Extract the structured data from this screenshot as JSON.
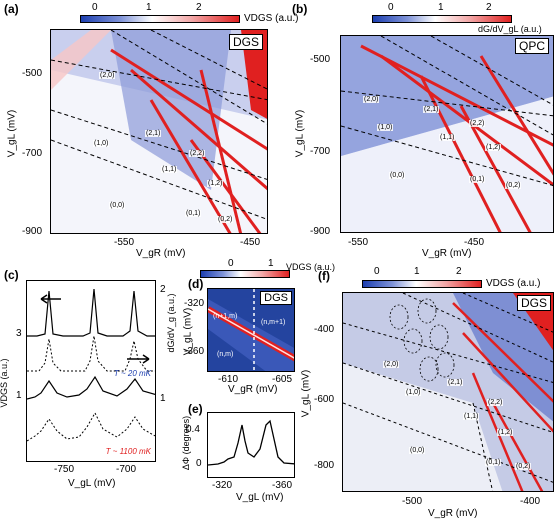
{
  "panels": {
    "a": {
      "letter": "(a)",
      "colorbar": {
        "ticks": [
          "0",
          "1",
          "2"
        ],
        "label": "VDGS (a.u.)"
      },
      "tag": "DGS",
      "ylabel": "V_gL (mV)",
      "xlabel": "V_gR (mV)",
      "yticks": [
        "-500",
        "-700",
        "-900"
      ],
      "xticks": [
        "-550",
        "-450"
      ],
      "states": [
        "(2,0)",
        "(1,0)",
        "(0,0)",
        "(2,1)",
        "(1,1)",
        "(2,2)",
        "(1,2)",
        "(0,1)",
        "(0,2)"
      ]
    },
    "b": {
      "letter": "(b)",
      "colorbar": {
        "ticks": [
          "0",
          "1",
          "2"
        ],
        "label": "dG/dV_gL (a.u.)"
      },
      "tag": "QPC",
      "ylabel": "V_gL (mV)",
      "xlabel": "V_gR (mV)",
      "yticks": [
        "-500",
        "-700",
        "-900"
      ],
      "xticks": [
        "-550",
        "-450"
      ],
      "states": [
        "(2,0)",
        "(1,0)",
        "(0,0)",
        "(2,1)",
        "(1,1)",
        "(2,2)",
        "(1,2)",
        "(0,1)",
        "(0,2)"
      ]
    },
    "c": {
      "letter": "(c)",
      "left_label": "VDGS (a.u.)",
      "right_label": "dG/dV_g (a.u.)",
      "left_ticks": [
        "3",
        "1"
      ],
      "right_ticks": [
        "2",
        "1"
      ],
      "xlabel": "V_gL (mV)",
      "xticks": [
        "-750",
        "-700"
      ],
      "temp_low": "T ~ 20 mK",
      "temp_high": "T ~ 1100 mK"
    },
    "d": {
      "letter": "(d)",
      "colorbar": {
        "ticks": [
          "0",
          "1"
        ],
        "label": "VDGS (a.u.)"
      },
      "tag": "DGS",
      "ylabel": "V_gL (mV)",
      "xlabel": "V_gR (mV)",
      "yticks": [
        "-320",
        "-360"
      ],
      "xticks": [
        "-610",
        "-605"
      ],
      "states": [
        "(n+1,m)",
        "(n,m+1)",
        "(n,m)"
      ]
    },
    "e": {
      "letter": "(e)",
      "ylabel": "ΔΦ (degrees)",
      "xlabel": "V_gL (mV)",
      "yticks": [
        "0.4",
        "0"
      ],
      "xticks": [
        "-320",
        "-360"
      ]
    },
    "f": {
      "letter": "(f)",
      "colorbar": {
        "ticks": [
          "0",
          "1",
          "2"
        ],
        "label": "VDGS (a.u.)"
      },
      "tag": "DGS",
      "ylabel": "V_gL (mV)",
      "xlabel": "V_gR (mV)",
      "yticks": [
        "-400",
        "-600",
        "-800"
      ],
      "xticks": [
        "-500",
        "-400"
      ],
      "states": [
        "(2,0)",
        "(1,0)",
        "(0,0)",
        "(2,1)",
        "(1,1)",
        "(2,2)",
        "(1,2)",
        "(0,1)",
        "(0,2)"
      ]
    }
  },
  "colors": {
    "red": "#e02020",
    "blue": "#1d3fb0",
    "white": "#ffffff"
  }
}
